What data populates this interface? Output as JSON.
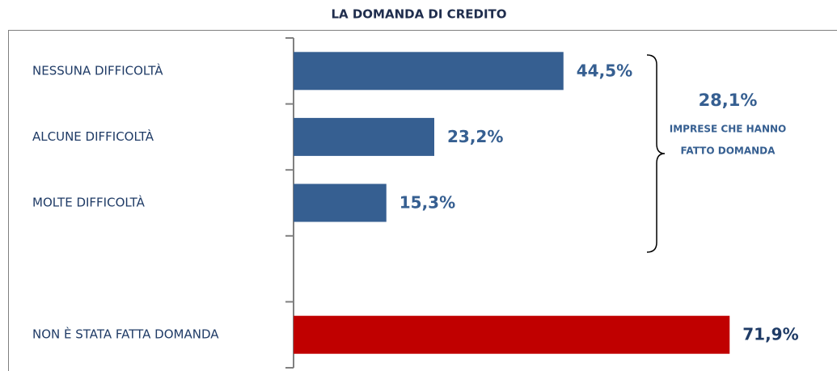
{
  "chart_data": {
    "type": "bar",
    "orientation": "horizontal",
    "title": "LA DOMANDA DI CREDITO",
    "categories": [
      "NESSUNA DIFFICOLTÀ",
      "ALCUNE DIFFICOLTÀ",
      "MOLTE DIFFICOLTÀ",
      null,
      "NON È STATA FATTA DOMANDA"
    ],
    "values": [
      44.5,
      23.2,
      15.3,
      null,
      71.9
    ],
    "value_labels": [
      "44,5%",
      "23,2%",
      "15,3%",
      null,
      "71,9%"
    ],
    "colors": [
      "#365f91",
      "#365f91",
      "#365f91",
      null,
      "#c00000"
    ],
    "xlim": [
      0,
      88
    ],
    "annotation": {
      "value_text": "28,1%",
      "lines": [
        "IMPRESE CHE HANNO",
        "FATTO DOMANDA"
      ]
    }
  }
}
